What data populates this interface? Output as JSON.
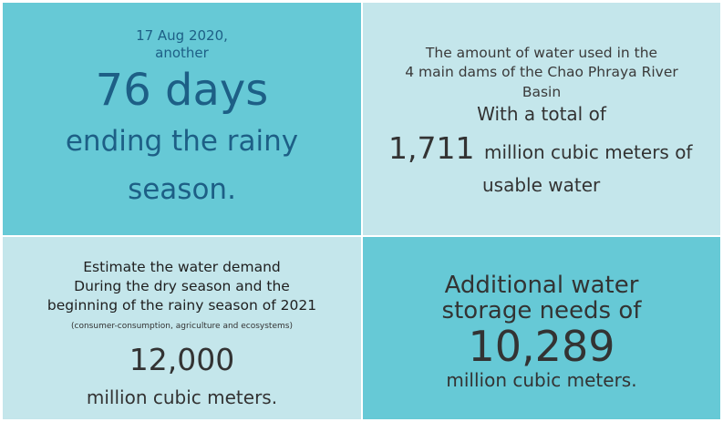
{
  "rainy_season": {
    "date": "17 Aug 2020,",
    "prefix": "another",
    "days": "76 days",
    "line1": "ending the rainy",
    "line2": "season."
  },
  "water_used": {
    "heading_line1": "The amount of water used in the",
    "heading_line2": "4 main dams of the Chao Phraya River",
    "heading_line3": "Basin",
    "total_label": "With a total of",
    "amount": "1,711",
    "unit": "million cubic meters of",
    "unit_line2": "usable water"
  },
  "water_demand": {
    "heading_line1": "Estimate the water demand",
    "heading_line2": "During the dry season and the",
    "heading_line3": "beginning of the rainy season of 2021",
    "note": "(consumer-consumption, agriculture and ecosystems)",
    "amount": "12,000",
    "unit": "million cubic meters."
  },
  "additional_storage": {
    "line1": "Additional water",
    "line2": "storage needs of",
    "amount": "10,289",
    "unit": "million cubic meters."
  },
  "colors": {
    "teal": "#66c9d6",
    "light_teal": "#c4e6eb",
    "dark_blue_text": "#1d5f86",
    "dark_text": "#333333"
  }
}
